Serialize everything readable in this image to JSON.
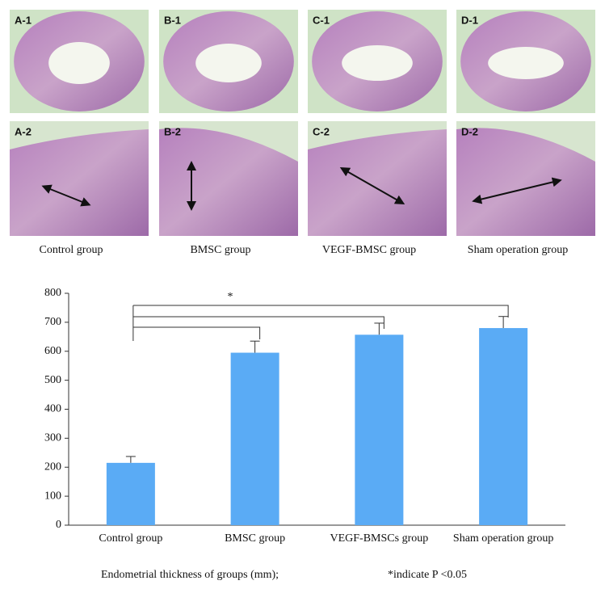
{
  "panels": [
    {
      "top": "A-1",
      "bottom": "A-2",
      "caption": "Control group"
    },
    {
      "top": "B-1",
      "bottom": "B-2",
      "caption": "BMSC group"
    },
    {
      "top": "C-1",
      "bottom": "C-2",
      "caption": "VEGF-BMSC group"
    },
    {
      "top": "D-1",
      "bottom": "D-2",
      "caption": "Sham operation group"
    }
  ],
  "chart_data": {
    "type": "bar",
    "categories": [
      "Control group",
      "BMSC group",
      "VEGF-BMSCs group",
      "Sham operation group"
    ],
    "values": [
      215,
      595,
      657,
      680
    ],
    "errors": [
      22,
      40,
      40,
      40
    ],
    "color": "#5aabf5",
    "ylim": [
      0,
      800
    ],
    "yticks": [
      0,
      100,
      200,
      300,
      400,
      500,
      600,
      700,
      800
    ],
    "annotations": [
      "*"
    ],
    "x_label": "Endometrial thickness of groups (mm);",
    "note": "*indicate P <0.05"
  }
}
